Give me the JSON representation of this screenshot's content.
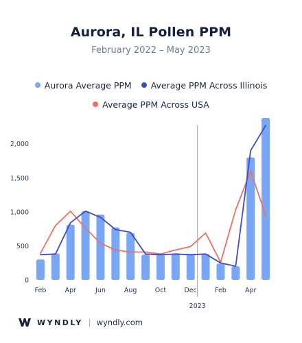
{
  "colors": {
    "bar": "#7aa7f5",
    "illinois": "#3a4cc9",
    "usa": "#ec6f63",
    "divider": "#a9a9a9"
  },
  "footer": {
    "brand": "WYNDLY",
    "separator": "|",
    "url": "wyndly.com",
    "logo_icon": "wyndly-w-logo-icon"
  },
  "chart_data": {
    "type": "bar",
    "title": "Aurora, IL Pollen PPM",
    "subtitle": "February 2022 – May 2023",
    "legend": [
      "Aurora Average PPM",
      "Average PPM Across Illinois",
      "Average PPM Across USA"
    ],
    "legend_placement": "top",
    "x": [
      "2022-02",
      "2022-03",
      "2022-04",
      "2022-05",
      "2022-06",
      "2022-07",
      "2022-08",
      "2022-09",
      "2022-10",
      "2022-11",
      "2022-12",
      "2023-01",
      "2023-02",
      "2023-03",
      "2023-04",
      "2023-05"
    ],
    "x_tick_labels": [
      "Feb",
      "Apr",
      "Jun",
      "Aug",
      "Oct",
      "Dec",
      "Feb",
      "Apr"
    ],
    "x_tick_indices": [
      0,
      2,
      4,
      6,
      8,
      10,
      12,
      14
    ],
    "year_label": "2023",
    "year_divider_after_index": 10,
    "series": [
      {
        "name": "Aurora Average PPM",
        "type": "bar",
        "values": [
          300,
          390,
          810,
          1010,
          960,
          770,
          690,
          370,
          380,
          390,
          380,
          380,
          240,
          200,
          1800,
          2380
        ]
      },
      {
        "name": "Average PPM Across Illinois",
        "type": "line",
        "values": [
          370,
          380,
          840,
          1010,
          920,
          740,
          700,
          380,
          370,
          380,
          370,
          380,
          250,
          200,
          1900,
          2270
        ]
      },
      {
        "name": "Average PPM Across USA",
        "type": "line",
        "values": [
          390,
          800,
          1010,
          760,
          540,
          440,
          410,
          410,
          380,
          440,
          490,
          690,
          260,
          1030,
          1600,
          950
        ]
      }
    ],
    "y_ticks": [
      0,
      500,
      1000,
      1500,
      2000
    ],
    "y_tick_labels": [
      "0",
      "500",
      "1,000",
      "1,500",
      "2,000"
    ],
    "ylim": [
      0,
      2400
    ],
    "grid": false
  }
}
